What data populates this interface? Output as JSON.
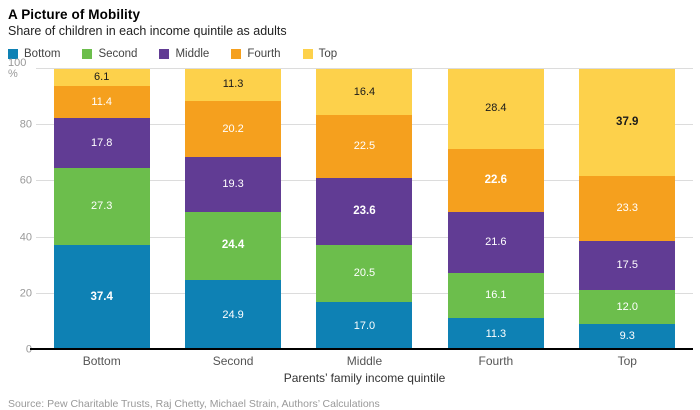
{
  "header": {
    "title": "A Picture of Mobility",
    "subtitle": "Share of children in each income quintile as adults"
  },
  "chart_data": {
    "type": "bar",
    "stacked": true,
    "title": "A Picture of Mobility",
    "subtitle": "Share of children in each income quintile as adults",
    "categories": [
      "Bottom",
      "Second",
      "Middle",
      "Fourth",
      "Top"
    ],
    "series": [
      {
        "name": "Bottom",
        "color": "#0e81b4",
        "label_color": "#ffffff",
        "values": [
          37.4,
          24.9,
          17.0,
          11.3,
          9.3
        ]
      },
      {
        "name": "Second",
        "color": "#6cbe4c",
        "label_color": "#ffffff",
        "values": [
          27.3,
          24.4,
          20.5,
          16.1,
          12.0
        ]
      },
      {
        "name": "Middle",
        "color": "#613c94",
        "label_color": "#ffffff",
        "values": [
          17.8,
          19.3,
          23.6,
          21.6,
          17.5
        ]
      },
      {
        "name": "Fourth",
        "color": "#f5a01e",
        "label_color": "#ffffff",
        "values": [
          11.4,
          20.2,
          22.5,
          22.6,
          23.3
        ]
      },
      {
        "name": "Top",
        "color": "#fdd14b",
        "label_color": "#1a1a1a",
        "values": [
          6.1,
          11.3,
          16.4,
          28.4,
          37.9
        ]
      }
    ],
    "bold_diagonal": true,
    "xlabel": "Parents’ family income quintile",
    "ylabel": "%",
    "ylim": [
      0,
      100
    ],
    "yticks": [
      0,
      20,
      40,
      60,
      80,
      100
    ],
    "ytick_top_label": "100 %",
    "legend_position": "top",
    "grid": true,
    "grid_color": "#dcdcdc"
  },
  "footer": {
    "source": "Source: Pew Charitable Trusts, Raj Chetty, Michael Strain, Authors’ Calculations"
  }
}
